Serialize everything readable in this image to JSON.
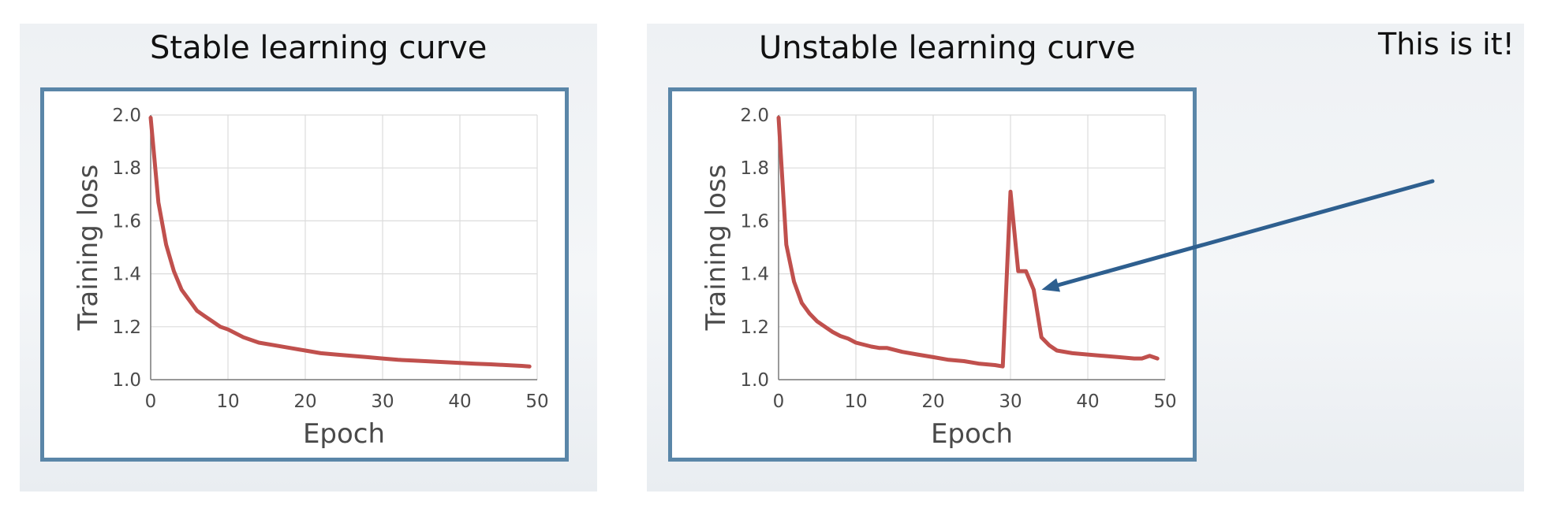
{
  "colors": {
    "line": "#c0504d",
    "frame_border": "#5a86a8",
    "arrow": "#2e5f8f",
    "grid": "#dcdcdc"
  },
  "annotation": "This is it!",
  "chart_data": [
    {
      "type": "line",
      "title": "Stable learning curve",
      "xlabel": "Epoch",
      "ylabel": "Training loss",
      "xlim": [
        0,
        50
      ],
      "ylim": [
        1.0,
        2.0
      ],
      "xticks": [
        0,
        10,
        20,
        30,
        40,
        50
      ],
      "yticks": [
        1.0,
        1.2,
        1.4,
        1.6,
        1.8,
        2.0
      ],
      "xtick_labels": [
        "0",
        "10",
        "20",
        "30",
        "40",
        "50"
      ],
      "ytick_labels": [
        "1.0",
        "1.2",
        "1.4",
        "1.6",
        "1.8",
        "2.0"
      ],
      "grid": true,
      "x": [
        0,
        1,
        2,
        3,
        4,
        5,
        6,
        7,
        8,
        9,
        10,
        12,
        14,
        16,
        18,
        20,
        22,
        24,
        26,
        28,
        30,
        32,
        34,
        36,
        38,
        40,
        42,
        44,
        46,
        48,
        49
      ],
      "y": [
        1.99,
        1.67,
        1.51,
        1.41,
        1.34,
        1.3,
        1.26,
        1.24,
        1.22,
        1.2,
        1.19,
        1.16,
        1.14,
        1.13,
        1.12,
        1.11,
        1.1,
        1.095,
        1.09,
        1.085,
        1.08,
        1.075,
        1.072,
        1.069,
        1.066,
        1.063,
        1.06,
        1.058,
        1.055,
        1.052,
        1.05
      ]
    },
    {
      "type": "line",
      "title": "Unstable learning curve",
      "xlabel": "Epoch",
      "ylabel": "Training loss",
      "xlim": [
        0,
        50
      ],
      "ylim": [
        1.0,
        2.0
      ],
      "xticks": [
        0,
        10,
        20,
        30,
        40,
        50
      ],
      "yticks": [
        1.0,
        1.2,
        1.4,
        1.6,
        1.8,
        2.0
      ],
      "xtick_labels": [
        "0",
        "10",
        "20",
        "30",
        "40",
        "50"
      ],
      "ytick_labels": [
        "1.0",
        "1.2",
        "1.4",
        "1.6",
        "1.8",
        "2.0"
      ],
      "grid": true,
      "x": [
        0,
        1,
        2,
        3,
        4,
        5,
        6,
        7,
        8,
        9,
        10,
        12,
        13,
        14,
        16,
        18,
        20,
        22,
        24,
        26,
        28,
        29,
        30,
        31,
        32,
        33,
        34,
        35,
        36,
        38,
        40,
        42,
        44,
        46,
        47,
        48,
        49
      ],
      "y": [
        1.99,
        1.51,
        1.37,
        1.29,
        1.25,
        1.22,
        1.2,
        1.18,
        1.165,
        1.155,
        1.14,
        1.125,
        1.12,
        1.12,
        1.105,
        1.095,
        1.085,
        1.075,
        1.07,
        1.06,
        1.055,
        1.05,
        1.71,
        1.41,
        1.41,
        1.34,
        1.16,
        1.13,
        1.11,
        1.1,
        1.095,
        1.09,
        1.085,
        1.08,
        1.08,
        1.09,
        1.08
      ]
    }
  ]
}
